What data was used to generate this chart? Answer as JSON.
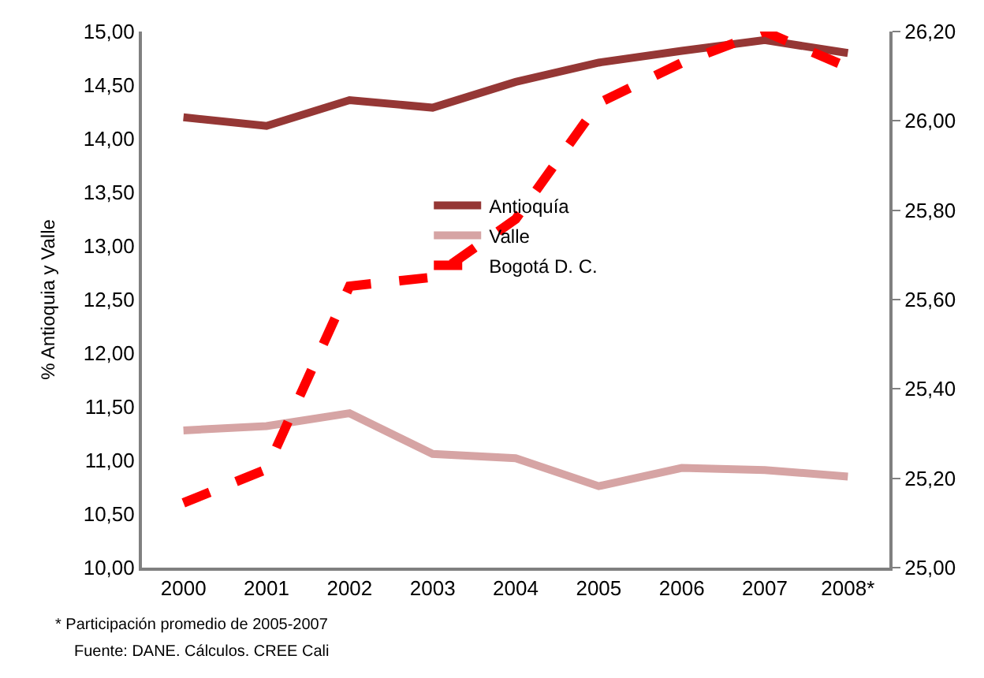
{
  "chart_data": {
    "type": "line",
    "ylabel": "% Antioquia y Valle",
    "categories": [
      "2000",
      "2001",
      "2002",
      "2003",
      "2004",
      "2005",
      "2006",
      "2007",
      "2008*"
    ],
    "series": [
      {
        "name": "Antioquía",
        "color": "#953735",
        "values": [
          14.2,
          14.12,
          14.36,
          14.29,
          14.53,
          14.71,
          14.82,
          14.92,
          14.8
        ]
      },
      {
        "name": "Valle",
        "color": "#d6a4a4",
        "values": [
          11.28,
          11.32,
          11.44,
          11.06,
          11.02,
          10.76,
          10.93,
          10.91,
          10.85
        ]
      },
      {
        "name": "Bogotá D. C.",
        "color": "#ff0000",
        "axis": "y2",
        "line_style": "dashed",
        "values": [
          25.145,
          25.22,
          25.63,
          25.65,
          25.78,
          26.04,
          26.13,
          26.2,
          26.12
        ]
      }
    ],
    "ylim": [
      10,
      15
    ],
    "yticks": [
      {
        "value": 10,
        "label": "10,00"
      },
      {
        "value": 10.5,
        "label": "10,50"
      },
      {
        "value": 11,
        "label": "11,00"
      },
      {
        "value": 11.5,
        "label": "11,50"
      },
      {
        "value": 12,
        "label": "12,00"
      },
      {
        "value": 12.5,
        "label": "12,50"
      },
      {
        "value": 13,
        "label": "13,00"
      },
      {
        "value": 13.5,
        "label": "13,50"
      },
      {
        "value": 14,
        "label": "14,00"
      },
      {
        "value": 14.5,
        "label": "14,50"
      },
      {
        "value": 15,
        "label": "15,00"
      }
    ],
    "y2lim": [
      25,
      26.2
    ],
    "y2ticks": [
      {
        "value": 25,
        "label": "25,00"
      },
      {
        "value": 25.2,
        "label": "25,20"
      },
      {
        "value": 25.4,
        "label": "25,40"
      },
      {
        "value": 25.6,
        "label": "25,60"
      },
      {
        "value": 25.8,
        "label": "25,80"
      },
      {
        "value": 26,
        "label": "26,00"
      },
      {
        "value": 26.2,
        "label": "26,20"
      }
    ],
    "annotations": [
      "* Participación promedio de 2005-2007",
      "Fuente: DANE. Cálculos. CREE Cali"
    ],
    "legend": "center",
    "marker": "none"
  }
}
